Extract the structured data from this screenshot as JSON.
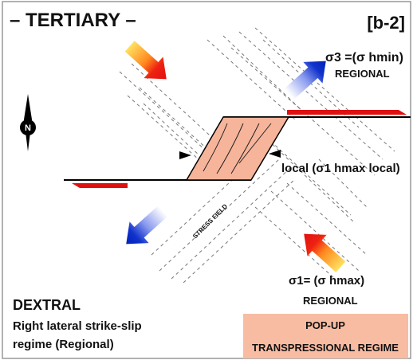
{
  "header": {
    "title": "– TERTIARY –",
    "code": "[b-2]"
  },
  "north": "N",
  "labels": {
    "sigma3": "σ3 =(σ hmin)",
    "sigma3_scope": "REGIONAL",
    "local": "local (σ1 hmax local)",
    "stress_field": "STRESS FIELD",
    "sigma1": "σ1= (σ  hmax)",
    "sigma1_scope": "REGIONAL"
  },
  "regime": {
    "name": "DEXTRAL",
    "line1": "Right lateral strike-slip",
    "line2": "regime (Regional)"
  },
  "popup": {
    "line1": "POP-UP",
    "line2": "TRANSPRESSIONAL REGIME"
  }
}
